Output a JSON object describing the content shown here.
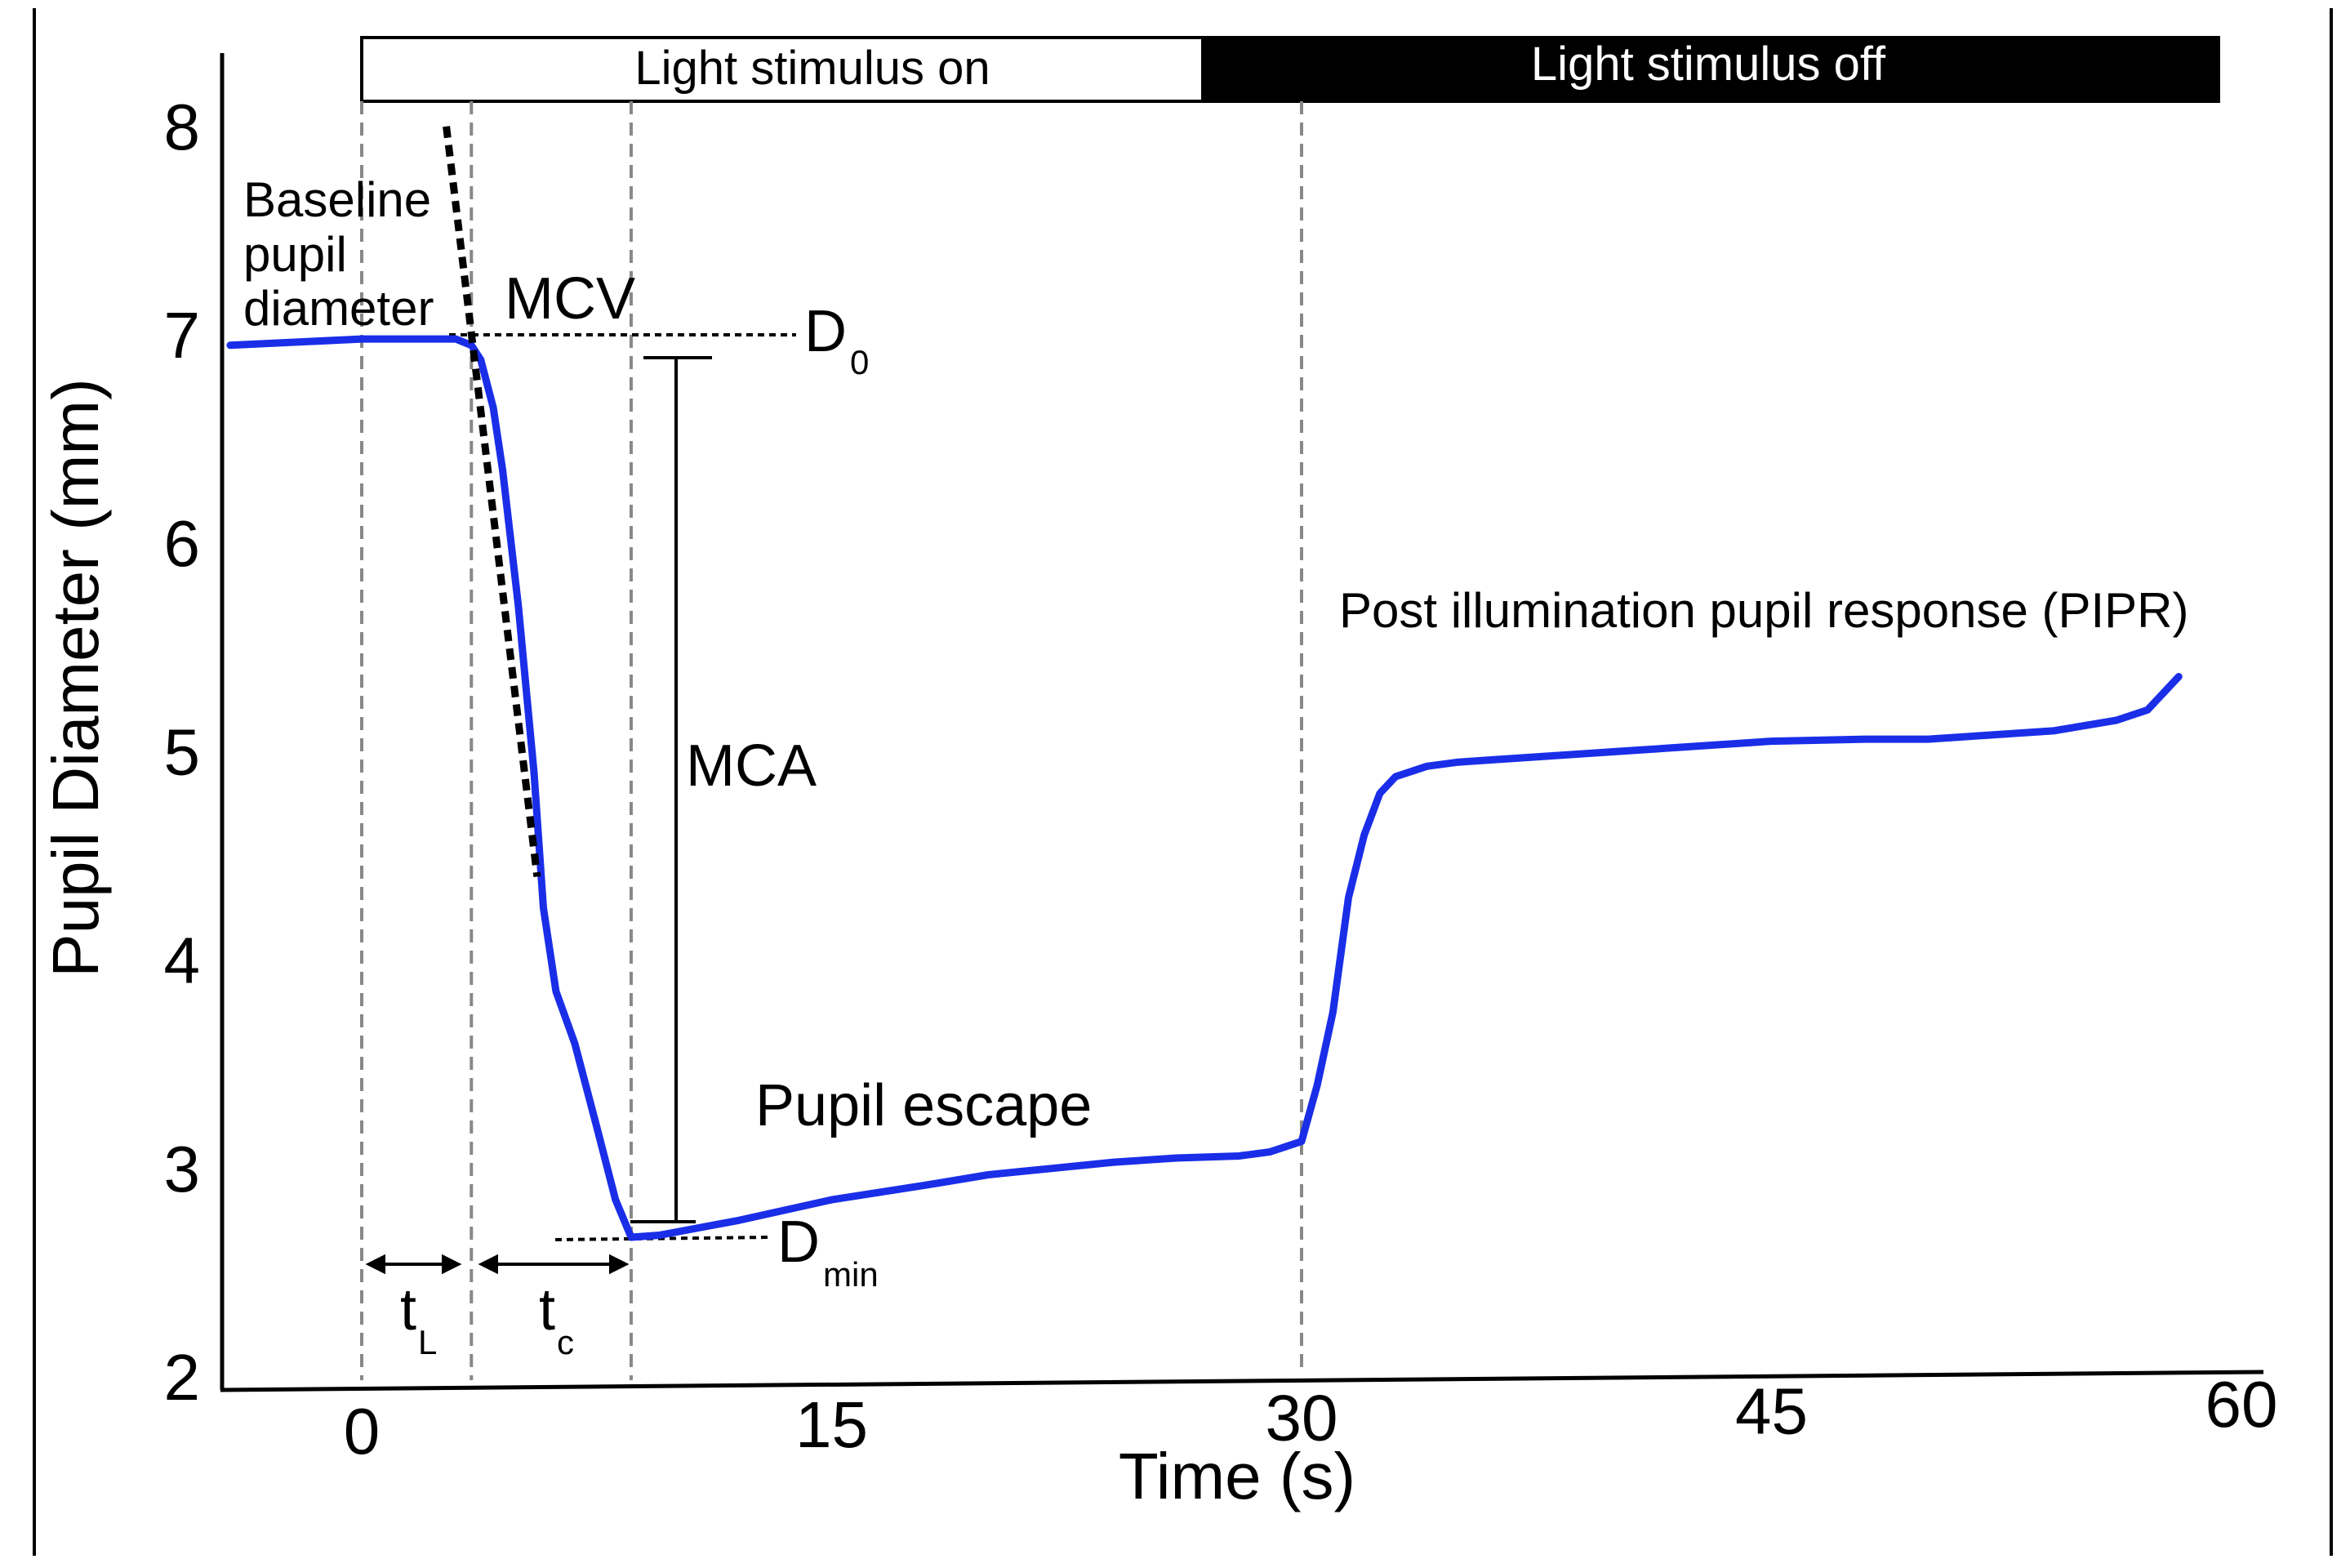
{
  "chart_data": {
    "type": "line",
    "title": "",
    "xlabel": "Time (s)",
    "ylabel": "Pupil Diameter (mm)",
    "x_ticks": [
      0,
      15,
      30,
      45,
      60
    ],
    "y_ticks": [
      2,
      3,
      4,
      5,
      6,
      7,
      8
    ],
    "xlim": [
      -4.2,
      60
    ],
    "ylim": [
      2,
      8.5
    ],
    "grid": false,
    "line_color": "#1a2ee8",
    "series": [
      {
        "name": "Pupil diameter",
        "x": [
          -4.2,
          0,
          2,
          3,
          3.5,
          3.8,
          4.2,
          4.5,
          5.0,
          5.5,
          5.8,
          6.2,
          6.8,
          7.5,
          8.1,
          8.6,
          9.5,
          12,
          15,
          18,
          20,
          22,
          24,
          26,
          28,
          29,
          30,
          30.5,
          31,
          31.5,
          32,
          32.5,
          33,
          34,
          35,
          36,
          38,
          40,
          42,
          45,
          48,
          50,
          52,
          54,
          56,
          57,
          58
        ],
        "y": [
          6.95,
          6.98,
          6.98,
          6.98,
          6.95,
          6.88,
          6.65,
          6.35,
          5.7,
          4.9,
          4.25,
          3.85,
          3.6,
          3.2,
          2.85,
          2.67,
          2.68,
          2.75,
          2.85,
          2.92,
          2.97,
          3.0,
          3.03,
          3.05,
          3.06,
          3.08,
          3.13,
          3.4,
          3.75,
          4.3,
          4.6,
          4.8,
          4.88,
          4.93,
          4.95,
          4.96,
          4.98,
          5.0,
          5.02,
          5.05,
          5.06,
          5.06,
          5.08,
          5.1,
          5.15,
          5.2,
          5.36
        ]
      }
    ],
    "mcv_line": {
      "x": [
        2.7,
        5.6
      ],
      "y": [
        8.0,
        4.4
      ]
    },
    "stimulus_bar": {
      "on_label": "Light stimulus on",
      "off_label": "Light stimulus off"
    },
    "annotations": {
      "baseline": [
        "Baseline",
        "pupil",
        "diameter"
      ],
      "mcv": "MCV",
      "mca": "MCA",
      "d0_main": "D",
      "d0_sub": "0",
      "dmin_main": "D",
      "dmin_sub": "min",
      "tl_main": "t",
      "tl_sub": "L",
      "tc_main": "t",
      "tc_sub": "c",
      "escape": "Pupil escape",
      "pipr": "Post illumination pupil response (PIPR)"
    }
  }
}
